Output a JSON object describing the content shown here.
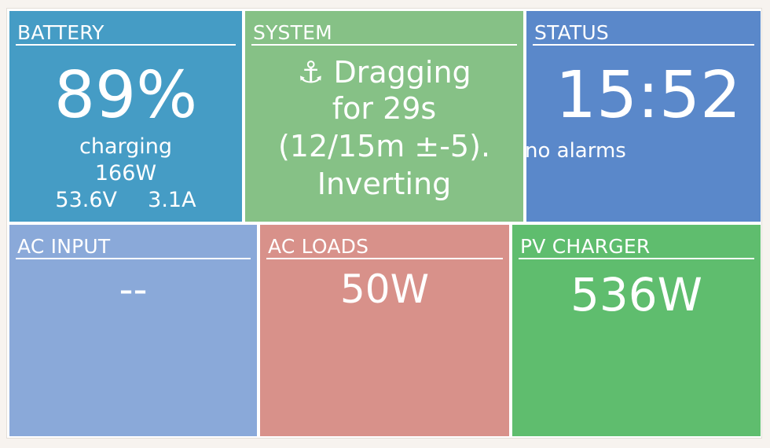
{
  "colors": {
    "battery": "#459cc5",
    "system": "#86c186",
    "status": "#5a88ca",
    "ac_input": "#8aa9d9",
    "ac_loads": "#d8918a",
    "pv_charger": "#5fbd6e"
  },
  "battery": {
    "title": "BATTERY",
    "percent": "89%",
    "state": "charging",
    "power": "166W",
    "voltage": "53.6V",
    "current": "3.1A"
  },
  "system": {
    "title": "SYSTEM",
    "icon": "anchor-icon",
    "line1": "Dragging",
    "line2": "for 29s",
    "line3": "(12/15m ±-5).",
    "line4": "Inverting"
  },
  "status": {
    "title": "STATUS",
    "time": "15:52",
    "alarms": "no alarms"
  },
  "ac_input": {
    "title": "AC INPUT",
    "value": "--"
  },
  "ac_loads": {
    "title": "AC LOADS",
    "value": "50W"
  },
  "pv_charger": {
    "title": "PV CHARGER",
    "value": "536W"
  }
}
